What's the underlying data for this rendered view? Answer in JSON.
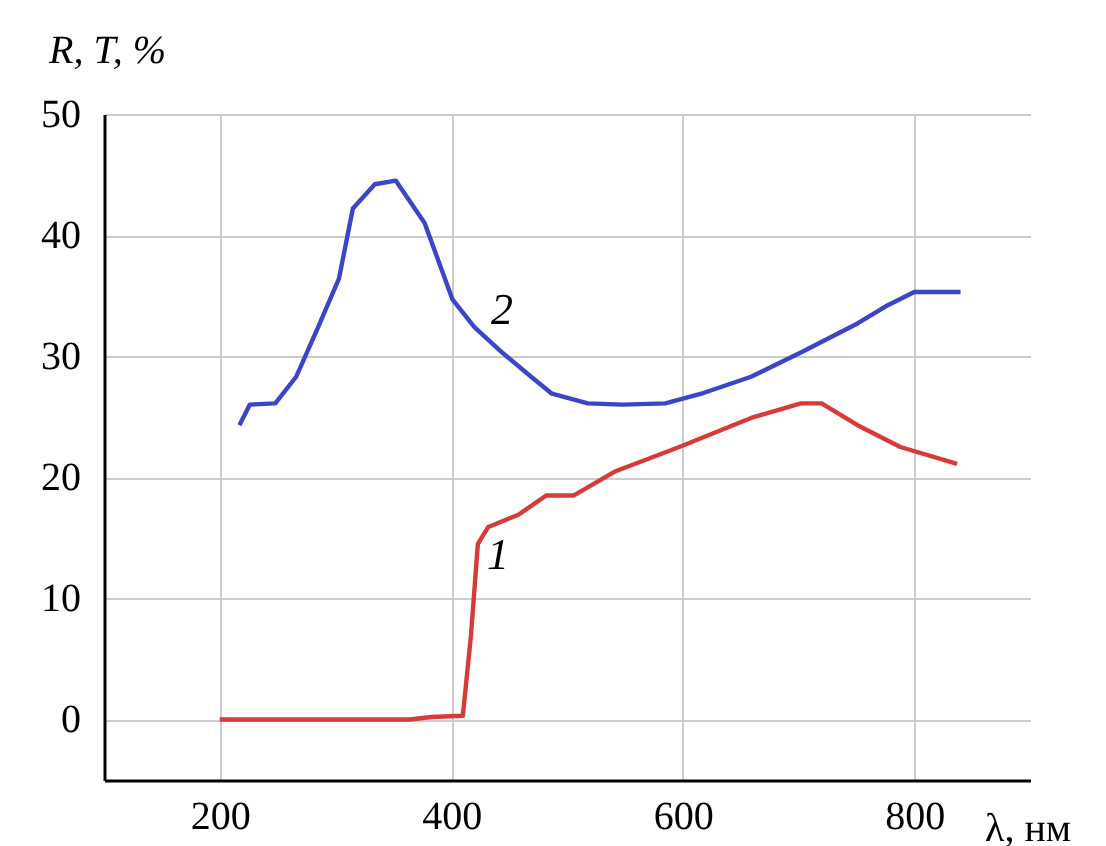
{
  "chart_data": {
    "type": "line",
    "xlabel": "λ, нм",
    "ylabel": "R, T, %",
    "xlim": [
      100,
      900
    ],
    "ylim": [
      -5,
      50
    ],
    "xticks": [
      200,
      400,
      600,
      800
    ],
    "yticks": [
      0,
      10,
      20,
      30,
      40,
      50
    ],
    "grid": true,
    "legend": false,
    "line_style": "solid",
    "marker": "none",
    "series": [
      {
        "name": "1",
        "color": "#d83a3a",
        "x": [
          200,
          364,
          383,
          410,
          417,
          423,
          432,
          458,
          482,
          506,
          542,
          597,
          659,
          702,
          720,
          751,
          788,
          837
        ],
        "values": [
          0,
          0,
          0.2,
          0.3,
          6.9,
          14.5,
          15.9,
          16.9,
          18.5,
          18.5,
          20.5,
          22.5,
          24.9,
          26.1,
          26.1,
          24.3,
          22.5,
          21.1
        ]
      },
      {
        "name": "2",
        "color": "#3a45c8",
        "x": [
          217,
          226,
          248,
          266,
          285,
          303,
          315,
          334,
          352,
          377,
          401,
          420,
          444,
          469,
          487,
          518,
          548,
          585,
          616,
          659,
          702,
          751,
          775,
          800,
          840
        ],
        "values": [
          24.3,
          26.0,
          26.1,
          28.3,
          32.4,
          36.4,
          42.2,
          44.2,
          44.5,
          41.0,
          34.7,
          32.4,
          30.3,
          28.3,
          26.9,
          26.1,
          26.0,
          26.1,
          26.9,
          28.3,
          30.3,
          32.7,
          34.1,
          35.3,
          35.3
        ]
      }
    ]
  }
}
